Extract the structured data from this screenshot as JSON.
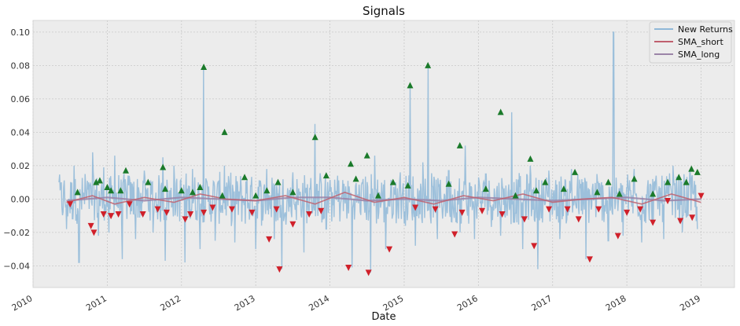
{
  "chart_data": {
    "type": "line",
    "title": "Signals",
    "xlabel": "Date",
    "ylabel": "",
    "xlim": [
      2010.0,
      2019.45
    ],
    "ylim": [
      -0.053,
      0.107
    ],
    "x_ticks": [
      2010,
      2011,
      2012,
      2013,
      2014,
      2015,
      2016,
      2017,
      2018,
      2019
    ],
    "x_tick_labels": [
      "2010",
      "2011",
      "2012",
      "2013",
      "2014",
      "2015",
      "2016",
      "2017",
      "2018",
      "2019"
    ],
    "y_ticks": [
      -0.04,
      -0.02,
      0.0,
      0.02,
      0.04,
      0.06,
      0.08,
      0.1
    ],
    "y_tick_labels": [
      "−0.04",
      "−0.02",
      "0.00",
      "0.02",
      "0.04",
      "0.06",
      "0.08",
      "0.10"
    ],
    "grid": true,
    "legend_position": "top-right",
    "legend": [
      "New Returns",
      "SMA_short",
      "SMA_long"
    ],
    "colors": {
      "returns": "#8fb8d8",
      "sma_short": "#c0606e",
      "sma_long": "#9b84a8",
      "buy": "#1a7a2a",
      "sell": "#d0202a",
      "background": "#ececec",
      "grid": "#c8c8c8"
    },
    "series": [
      {
        "name": "New Returns",
        "x": [
          2010.35,
          2010.45,
          2010.55,
          2010.62,
          2010.7,
          2010.8,
          2010.88,
          2010.95,
          2011.02,
          2011.1,
          2011.2,
          2011.28,
          2011.38,
          2011.5,
          2011.62,
          2011.75,
          2011.78,
          2011.9,
          2012.05,
          2012.15,
          2012.25,
          2012.3,
          2012.45,
          2012.58,
          2012.72,
          2012.88,
          2013.0,
          2013.15,
          2013.25,
          2013.35,
          2013.5,
          2013.65,
          2013.8,
          2013.95,
          2014.1,
          2014.3,
          2014.45,
          2014.55,
          2014.6,
          2014.75,
          2014.95,
          2015.08,
          2015.15,
          2015.25,
          2015.32,
          2015.45,
          2015.6,
          2015.75,
          2015.82,
          2015.95,
          2016.1,
          2016.3,
          2016.45,
          2016.6,
          2016.7,
          2016.8,
          2016.95,
          2017.1,
          2017.25,
          2017.45,
          2017.6,
          2017.75,
          2017.82,
          2017.95,
          2018.1,
          2018.2,
          2018.35,
          2018.5,
          2018.62,
          2018.75,
          2018.85,
          2018.95
        ],
        "values": [
          0.01,
          -0.018,
          0.02,
          -0.038,
          0.015,
          0.028,
          -0.022,
          0.019,
          -0.02,
          0.026,
          -0.036,
          0.014,
          -0.024,
          0.017,
          -0.02,
          0.025,
          -0.037,
          0.02,
          -0.038,
          0.018,
          -0.03,
          0.079,
          -0.025,
          0.02,
          -0.026,
          0.012,
          -0.03,
          0.018,
          -0.024,
          -0.042,
          0.016,
          -0.032,
          0.045,
          -0.018,
          0.014,
          -0.041,
          0.012,
          -0.044,
          0.026,
          -0.03,
          0.016,
          0.068,
          -0.028,
          0.022,
          0.08,
          -0.024,
          0.017,
          -0.02,
          0.032,
          -0.024,
          0.015,
          -0.022,
          0.052,
          -0.03,
          0.02,
          -0.042,
          0.017,
          -0.024,
          0.018,
          -0.036,
          0.015,
          -0.025,
          0.1,
          -0.022,
          0.018,
          -0.026,
          0.012,
          -0.024,
          0.02,
          -0.02,
          0.017,
          -0.018
        ]
      },
      {
        "name": "SMA_short",
        "x": [
          2010.45,
          2010.8,
          2011.1,
          2011.5,
          2011.9,
          2012.25,
          2012.6,
          2013.0,
          2013.4,
          2013.8,
          2014.2,
          2014.6,
          2015.0,
          2015.4,
          2015.8,
          2016.2,
          2016.6,
          2017.0,
          2017.4,
          2017.8,
          2018.2,
          2018.6,
          2019.0
        ],
        "values": [
          -0.002,
          0.002,
          -0.003,
          0.001,
          -0.002,
          0.003,
          0.0,
          -0.001,
          0.002,
          -0.003,
          0.004,
          -0.002,
          0.001,
          -0.003,
          0.002,
          -0.001,
          0.003,
          -0.002,
          0.0,
          0.001,
          -0.003,
          0.003,
          -0.002
        ]
      },
      {
        "name": "SMA_long",
        "x": [
          2010.45,
          2011.0,
          2011.5,
          2012.0,
          2012.5,
          2013.0,
          2013.5,
          2014.0,
          2014.5,
          2015.0,
          2015.5,
          2016.0,
          2016.5,
          2017.0,
          2017.5,
          2018.0,
          2018.5,
          2019.0
        ],
        "values": [
          -0.001,
          0.001,
          -0.001,
          0.001,
          0.0,
          -0.001,
          0.001,
          0.001,
          -0.001,
          0.0,
          -0.001,
          0.001,
          0.0,
          -0.001,
          0.0,
          0.001,
          -0.001,
          0.0
        ]
      }
    ],
    "buy_signals": {
      "x": [
        2010.6,
        2010.85,
        2010.9,
        2011.0,
        2011.05,
        2011.18,
        2011.25,
        2011.55,
        2011.75,
        2011.78,
        2012.0,
        2012.15,
        2012.25,
        2012.3,
        2012.55,
        2012.58,
        2012.85,
        2013.0,
        2013.15,
        2013.3,
        2013.5,
        2013.8,
        2013.95,
        2014.28,
        2014.35,
        2014.5,
        2014.65,
        2014.85,
        2015.05,
        2015.08,
        2015.32,
        2015.6,
        2015.75,
        2016.1,
        2016.3,
        2016.5,
        2016.7,
        2016.78,
        2016.9,
        2017.15,
        2017.3,
        2017.6,
        2017.75,
        2017.9,
        2018.1,
        2018.35,
        2018.55,
        2018.7,
        2018.8,
        2018.87,
        2018.95
      ],
      "y": [
        0.004,
        0.01,
        0.011,
        0.007,
        0.005,
        0.005,
        0.017,
        0.01,
        0.019,
        0.006,
        0.005,
        0.004,
        0.007,
        0.079,
        0.002,
        0.04,
        0.013,
        0.002,
        0.005,
        0.01,
        0.004,
        0.037,
        0.014,
        0.021,
        0.012,
        0.026,
        0.002,
        0.01,
        0.008,
        0.068,
        0.08,
        0.009,
        0.032,
        0.006,
        0.052,
        0.002,
        0.024,
        0.005,
        0.01,
        0.006,
        0.016,
        0.004,
        0.01,
        0.003,
        0.012,
        0.003,
        0.01,
        0.013,
        0.01,
        0.018,
        0.016
      ]
    },
    "sell_signals": {
      "x": [
        2010.5,
        2010.78,
        2010.82,
        2010.95,
        2011.05,
        2011.15,
        2011.3,
        2011.48,
        2011.68,
        2011.8,
        2012.05,
        2012.12,
        2012.3,
        2012.42,
        2012.68,
        2012.95,
        2013.18,
        2013.28,
        2013.32,
        2013.5,
        2013.72,
        2013.88,
        2014.25,
        2014.52,
        2014.8,
        2015.15,
        2015.42,
        2015.68,
        2015.78,
        2016.05,
        2016.32,
        2016.62,
        2016.75,
        2016.95,
        2017.2,
        2017.35,
        2017.5,
        2017.62,
        2017.88,
        2018.0,
        2018.18,
        2018.35,
        2018.55,
        2018.72,
        2018.88,
        2019.0
      ],
      "y": [
        -0.003,
        -0.016,
        -0.02,
        -0.009,
        -0.01,
        -0.009,
        -0.003,
        -0.009,
        -0.006,
        -0.008,
        -0.012,
        -0.009,
        -0.008,
        -0.005,
        -0.006,
        -0.008,
        -0.024,
        -0.006,
        -0.042,
        -0.015,
        -0.009,
        -0.007,
        -0.041,
        -0.044,
        -0.03,
        -0.005,
        -0.006,
        -0.021,
        -0.008,
        -0.007,
        -0.009,
        -0.012,
        -0.028,
        -0.006,
        -0.006,
        -0.012,
        -0.036,
        -0.006,
        -0.022,
        -0.008,
        -0.006,
        -0.014,
        -0.001,
        -0.013,
        -0.011,
        0.002
      ]
    }
  }
}
